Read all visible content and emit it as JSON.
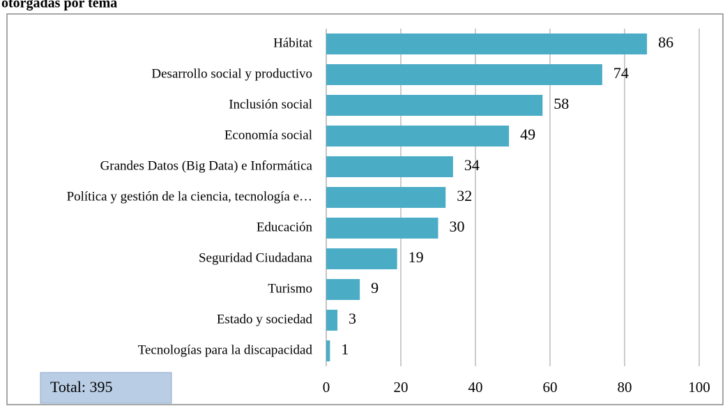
{
  "chart_data": {
    "type": "hbar",
    "title": "otorgadas por tema",
    "categories": [
      "Hábitat",
      "Desarrollo social y productivo",
      "Inclusión social",
      "Economía social",
      "Grandes Datos (Big Data) e Informática",
      "Política y gestión de la ciencia, tecnología e…",
      "Educación",
      "Seguridad Ciudadana",
      "Turismo",
      "Estado y sociedad",
      "Tecnologías para la discapacidad"
    ],
    "values": [
      86,
      74,
      58,
      49,
      34,
      32,
      30,
      19,
      9,
      3,
      1
    ],
    "color": "#4bacc6",
    "xlim": [
      0,
      100
    ],
    "xticks": [
      0,
      20,
      40,
      60,
      80,
      100
    ],
    "grid": true,
    "annotation": "Total: 395"
  }
}
